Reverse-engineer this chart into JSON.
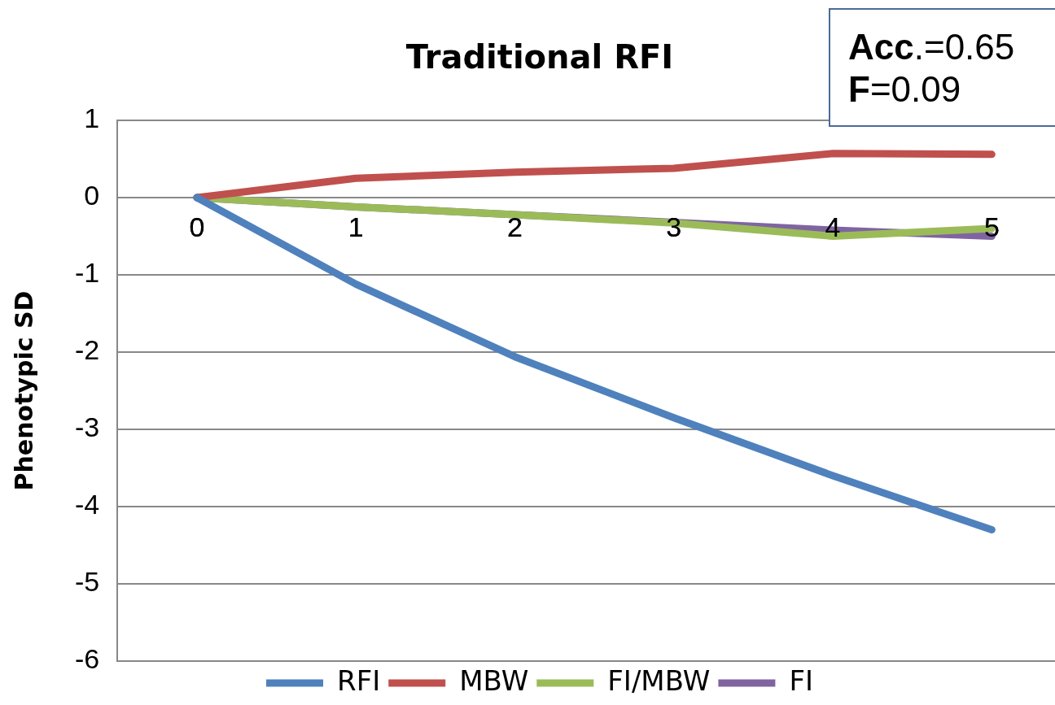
{
  "chart_data": {
    "type": "line",
    "title": "Traditional RFI",
    "ylabel": "Phenotypic SD",
    "annotations": [
      "Acc.=0.65",
      "F=0.09"
    ],
    "categories": [
      "0",
      "1",
      "2",
      "3",
      "4",
      "5"
    ],
    "series": [
      {
        "name": "RFI",
        "color": "#4f81bd",
        "values": [
          0,
          -1.12,
          -2.06,
          -2.85,
          -3.6,
          -4.3
        ]
      },
      {
        "name": "MBW",
        "color": "#c0504d",
        "values": [
          0,
          0.25,
          0.33,
          0.38,
          0.57,
          0.56
        ]
      },
      {
        "name": "FI/MBW",
        "color": "#9bbb59",
        "values": [
          0,
          -0.12,
          -0.22,
          -0.33,
          -0.5,
          -0.4
        ]
      },
      {
        "name": "FI",
        "color": "#8064a2",
        "values": [
          0,
          -0.12,
          -0.22,
          -0.32,
          -0.42,
          -0.5
        ]
      }
    ],
    "ylim": [
      -6,
      1
    ],
    "yticks": [
      -6,
      -5,
      -4,
      -3,
      -2,
      -1,
      0,
      1
    ],
    "grid": "y",
    "legend": "bottom",
    "marker": "none",
    "line_style": "solid"
  }
}
